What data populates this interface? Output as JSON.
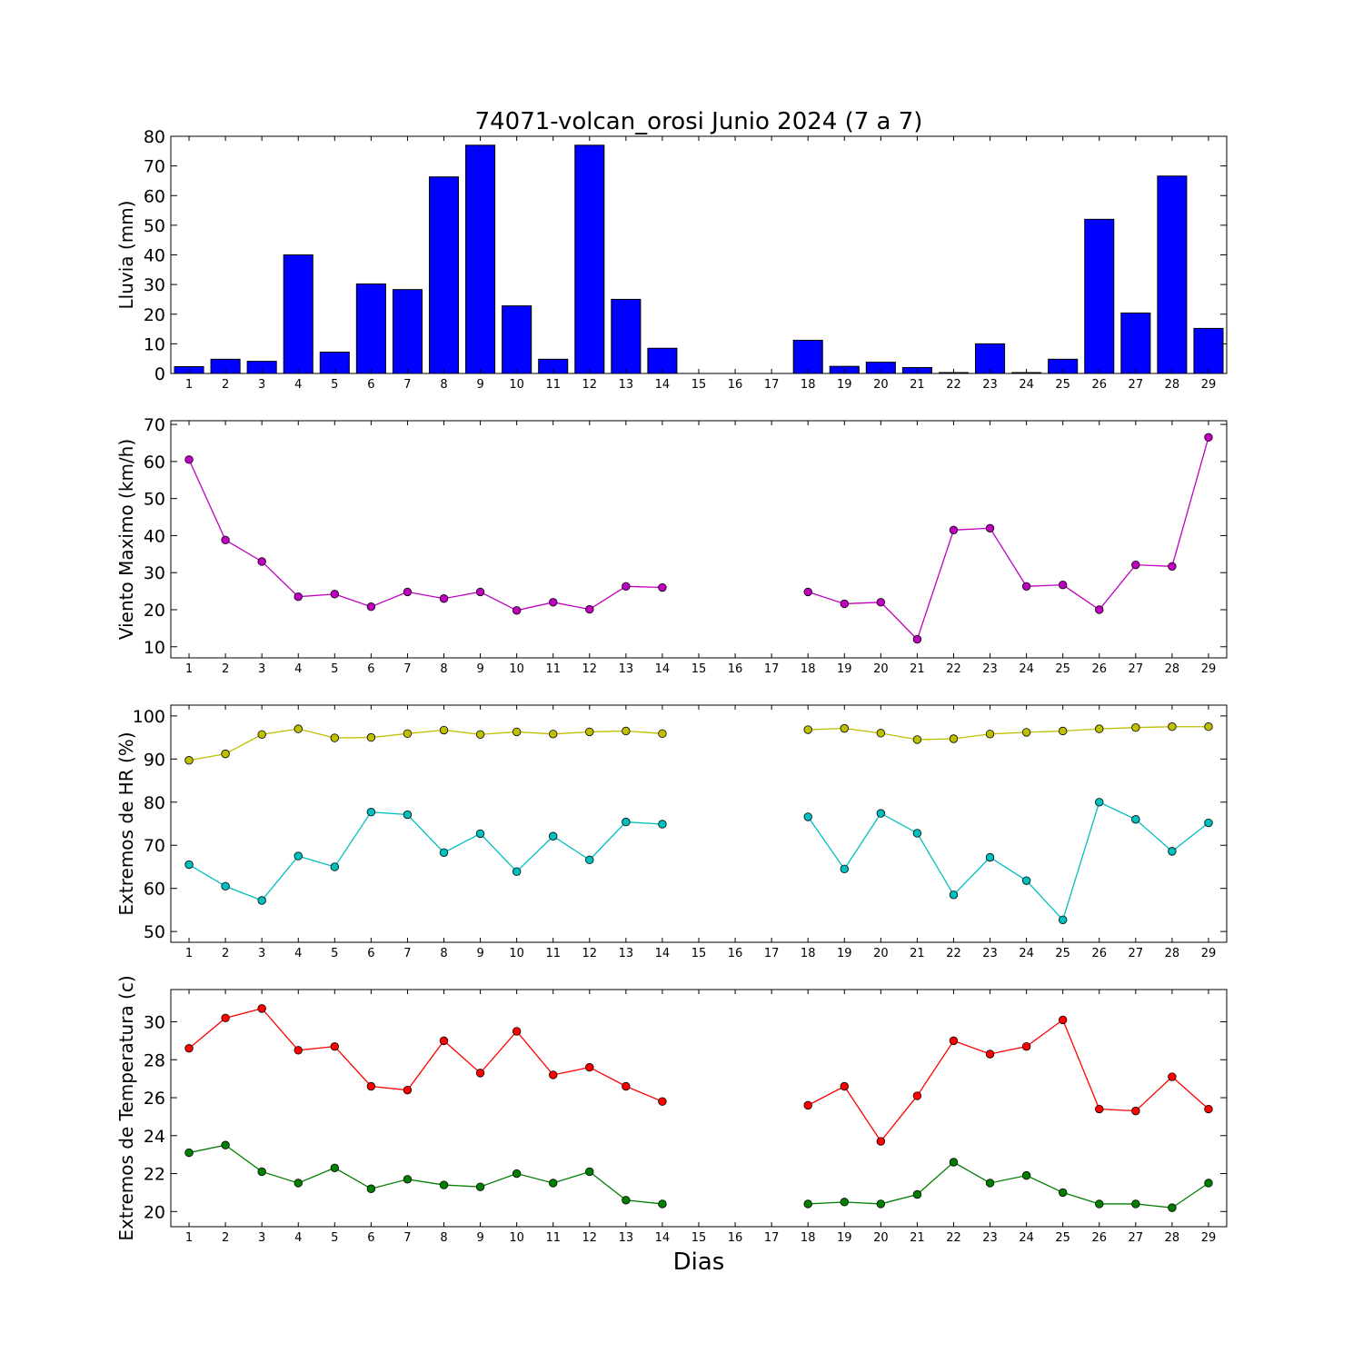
{
  "figure": {
    "title": "74071-volcan_orosi Junio 2024  (7 a 7)",
    "xlabel": "Dias"
  },
  "chart_data": [
    {
      "type": "bar",
      "ylabel": "Lluvia (mm)",
      "categories": [
        "1",
        "2",
        "3",
        "4",
        "5",
        "6",
        "7",
        "8",
        "9",
        "10",
        "11",
        "12",
        "13",
        "14",
        "15",
        "16",
        "17",
        "18",
        "19",
        "20",
        "21",
        "22",
        "23",
        "24",
        "25",
        "26",
        "27",
        "28",
        "29"
      ],
      "values": [
        2.3,
        4.8,
        4.1,
        40.0,
        7.2,
        30.2,
        28.3,
        66.3,
        77.0,
        22.8,
        4.8,
        77.0,
        25.0,
        8.5,
        null,
        null,
        null,
        11.2,
        2.4,
        3.8,
        2.0,
        0.3,
        10.0,
        0.3,
        4.8,
        52.0,
        20.4,
        66.6,
        15.2
      ],
      "ylim": [
        0,
        80
      ],
      "yticks": [
        0,
        10,
        20,
        30,
        40,
        50,
        60,
        70,
        80
      ],
      "colors": {
        "bar": "#0000ff"
      }
    },
    {
      "type": "line",
      "ylabel": "Viento Maximo (km/h)",
      "x": [
        1,
        2,
        3,
        4,
        5,
        6,
        7,
        8,
        9,
        10,
        11,
        12,
        13,
        14,
        15,
        16,
        17,
        18,
        19,
        20,
        21,
        22,
        23,
        24,
        25,
        26,
        27,
        28,
        29
      ],
      "series": [
        {
          "color": "#bf00bf",
          "values": [
            60.5,
            38.8,
            33.0,
            23.5,
            24.2,
            20.8,
            24.8,
            23.0,
            24.8,
            19.8,
            22.0,
            20.1,
            26.3,
            26.0,
            null,
            null,
            null,
            24.8,
            21.6,
            22.0,
            12.0,
            41.5,
            42.0,
            26.3,
            26.7,
            20.0,
            32.1,
            31.7,
            66.5
          ]
        }
      ],
      "ylim": [
        7,
        71
      ],
      "yticks": [
        10,
        20,
        30,
        40,
        50,
        60,
        70
      ]
    },
    {
      "type": "line",
      "ylabel": "Extremos de HR (%)",
      "x": [
        1,
        2,
        3,
        4,
        5,
        6,
        7,
        8,
        9,
        10,
        11,
        12,
        13,
        14,
        15,
        16,
        17,
        18,
        19,
        20,
        21,
        22,
        23,
        24,
        25,
        26,
        27,
        28,
        29
      ],
      "series": [
        {
          "color": "#bfbf00",
          "values": [
            89.7,
            91.2,
            95.7,
            97.0,
            94.9,
            95.0,
            95.9,
            96.7,
            95.7,
            96.3,
            95.8,
            96.3,
            96.5,
            95.9,
            null,
            null,
            null,
            96.8,
            97.1,
            96.0,
            94.5,
            94.7,
            95.8,
            96.2,
            96.5,
            97.0,
            97.3,
            97.5,
            97.5
          ]
        },
        {
          "color": "#00bfbf",
          "values": [
            65.5,
            60.5,
            57.2,
            67.5,
            65.0,
            77.7,
            77.1,
            68.3,
            72.7,
            63.9,
            72.1,
            66.6,
            75.4,
            74.9,
            null,
            null,
            null,
            76.6,
            64.5,
            77.4,
            72.8,
            58.5,
            67.2,
            61.8,
            52.7,
            80.0,
            76.0,
            68.6,
            75.2
          ]
        }
      ],
      "ylim": [
        47.5,
        102.5
      ],
      "yticks": [
        50,
        60,
        70,
        80,
        90,
        100
      ]
    },
    {
      "type": "line",
      "ylabel": "Extremos de Temperatura (c)",
      "x": [
        1,
        2,
        3,
        4,
        5,
        6,
        7,
        8,
        9,
        10,
        11,
        12,
        13,
        14,
        15,
        16,
        17,
        18,
        19,
        20,
        21,
        22,
        23,
        24,
        25,
        26,
        27,
        28,
        29
      ],
      "series": [
        {
          "color": "#ff0000",
          "values": [
            28.6,
            30.2,
            30.7,
            28.5,
            28.7,
            26.6,
            26.4,
            29.0,
            27.3,
            29.5,
            27.2,
            27.6,
            26.6,
            25.8,
            null,
            null,
            null,
            25.6,
            26.6,
            23.7,
            26.1,
            29.0,
            28.3,
            28.7,
            30.1,
            25.4,
            25.3,
            27.1,
            25.4
          ]
        },
        {
          "color": "#007f00",
          "values": [
            23.1,
            23.5,
            22.1,
            21.5,
            22.3,
            21.2,
            21.7,
            21.4,
            21.3,
            22.0,
            21.5,
            22.1,
            20.6,
            20.4,
            null,
            null,
            null,
            20.4,
            20.5,
            20.4,
            20.9,
            22.6,
            21.5,
            21.9,
            21.0,
            20.4,
            20.4,
            20.2,
            21.5
          ]
        }
      ],
      "ylim": [
        19.2,
        31.7
      ],
      "yticks": [
        20,
        22,
        24,
        26,
        28,
        30
      ]
    }
  ]
}
